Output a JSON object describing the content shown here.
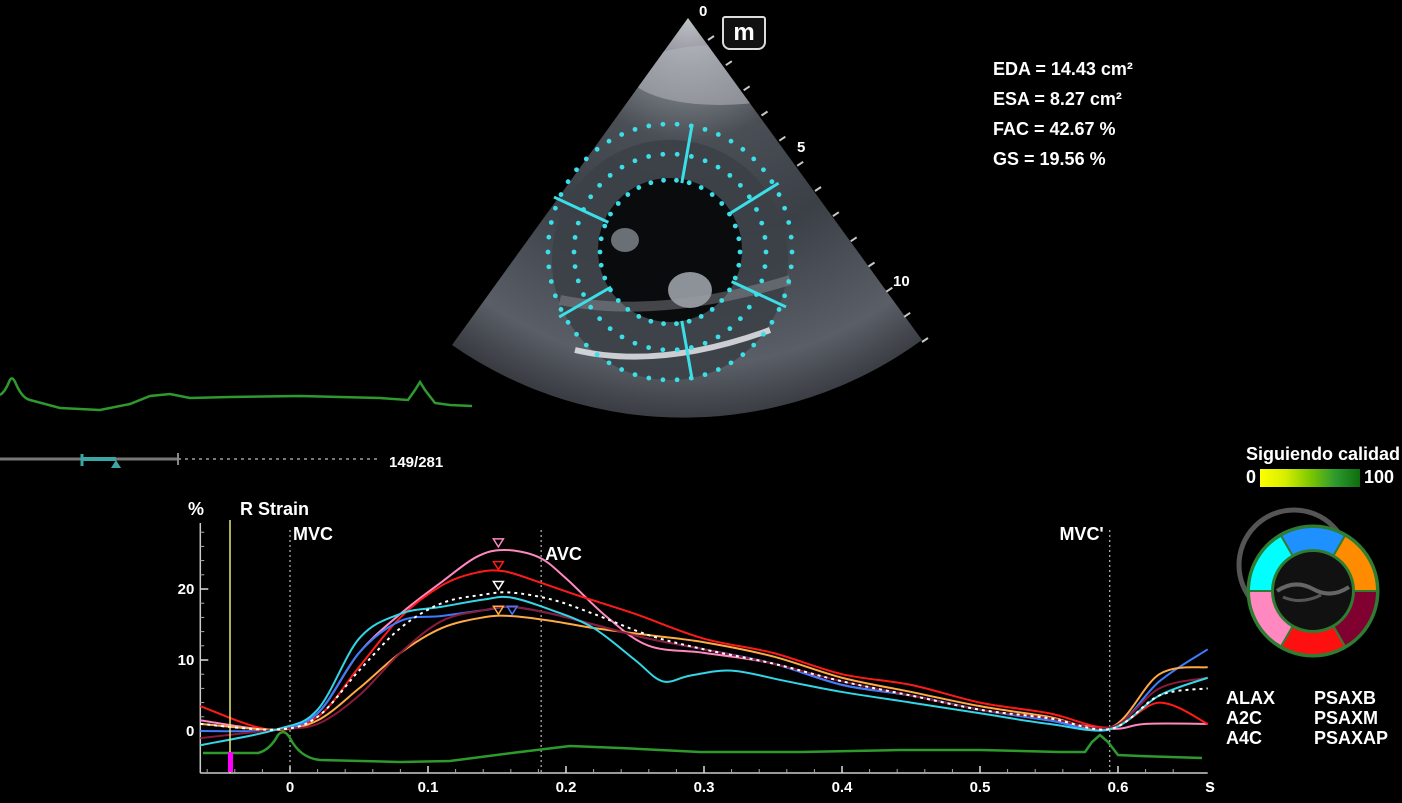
{
  "logo": {
    "letter": "m"
  },
  "depth_scale": {
    "labels": [
      "0",
      "5",
      "10"
    ]
  },
  "measurements": [
    {
      "label": "EDA",
      "value": "14.43 cm²"
    },
    {
      "label": "ESA",
      "value": "8.27 cm²"
    },
    {
      "label": "FAC",
      "value": "42.67 %"
    },
    {
      "label": "GS",
      "value": "19.56 %"
    }
  ],
  "frame_counter": "149/281",
  "quality": {
    "title": "Siguiendo calidad",
    "min_label": "0",
    "max_label": "100"
  },
  "colors": {
    "segment_cyan": "#00ffff",
    "segment_blue": "#1e90ff",
    "segment_orange": "#ff8c00",
    "segment_pink": "#ff88c0",
    "segment_red": "#ff1010",
    "segment_maroon": "#800030",
    "ecg_green": "#2e9a2e",
    "tracking_cyan": "#3adfe8"
  },
  "views": {
    "left": [
      "ALAX",
      "A2C",
      "A4C"
    ],
    "right": [
      "PSAXB",
      "PSAXM",
      "PSAXAP"
    ]
  },
  "chart_data": {
    "type": "line",
    "title": "R Strain",
    "ylabel": "%",
    "xlabel": "s",
    "xlim": [
      -0.065,
      0.665
    ],
    "ylim": [
      -3,
      30
    ],
    "x_ticks": [
      "0",
      "0.1",
      "0.2",
      "0.3",
      "0.4",
      "0.5",
      "0.6"
    ],
    "y_ticks": [
      "0",
      "10",
      "20"
    ],
    "markers": [
      {
        "label": "MVC",
        "x": 0.0
      },
      {
        "label": "AVC",
        "x": 0.182
      },
      {
        "label": "MVC'",
        "x": 0.594
      }
    ],
    "grid": false,
    "series": [
      {
        "color": "#ff88c0",
        "points": [
          [
            -0.065,
            1.5
          ],
          [
            -0.01,
            0.2
          ],
          [
            0.02,
            2.5
          ],
          [
            0.05,
            11
          ],
          [
            0.08,
            16.5
          ],
          [
            0.11,
            21
          ],
          [
            0.135,
            24.5
          ],
          [
            0.155,
            25.5
          ],
          [
            0.18,
            24.5
          ],
          [
            0.2,
            21.5
          ],
          [
            0.23,
            16
          ],
          [
            0.26,
            12
          ],
          [
            0.3,
            11
          ],
          [
            0.35,
            9.5
          ],
          [
            0.4,
            6.5
          ],
          [
            0.45,
            5
          ],
          [
            0.5,
            3
          ],
          [
            0.55,
            1.5
          ],
          [
            0.595,
            0.3
          ],
          [
            0.62,
            1
          ],
          [
            0.665,
            1
          ]
        ]
      },
      {
        "color": "#ff1a1a",
        "points": [
          [
            -0.065,
            3.5
          ],
          [
            -0.015,
            0.2
          ],
          [
            0.02,
            2
          ],
          [
            0.05,
            9
          ],
          [
            0.08,
            16
          ],
          [
            0.11,
            20.5
          ],
          [
            0.135,
            22.3
          ],
          [
            0.155,
            22.5
          ],
          [
            0.18,
            21
          ],
          [
            0.21,
            19
          ],
          [
            0.25,
            16.5
          ],
          [
            0.3,
            13
          ],
          [
            0.35,
            11
          ],
          [
            0.4,
            8
          ],
          [
            0.45,
            6.5
          ],
          [
            0.5,
            4
          ],
          [
            0.55,
            2.5
          ],
          [
            0.595,
            0.5
          ],
          [
            0.63,
            4
          ],
          [
            0.665,
            1
          ]
        ]
      },
      {
        "color": "#3c7cff",
        "points": [
          [
            -0.065,
            0
          ],
          [
            -0.01,
            0.2
          ],
          [
            0.02,
            2.5
          ],
          [
            0.05,
            11
          ],
          [
            0.08,
            15.5
          ],
          [
            0.11,
            16.2
          ],
          [
            0.14,
            17
          ],
          [
            0.16,
            17.5
          ],
          [
            0.19,
            16.5
          ],
          [
            0.22,
            15
          ],
          [
            0.26,
            13
          ],
          [
            0.3,
            11.5
          ],
          [
            0.35,
            9.5
          ],
          [
            0.4,
            6.5
          ],
          [
            0.45,
            5
          ],
          [
            0.5,
            3
          ],
          [
            0.55,
            1.5
          ],
          [
            0.595,
            0.3
          ],
          [
            0.63,
            7
          ],
          [
            0.665,
            11.5
          ]
        ]
      },
      {
        "color": "#ffaa44",
        "points": [
          [
            -0.065,
            1
          ],
          [
            -0.01,
            0.2
          ],
          [
            0.02,
            1.5
          ],
          [
            0.05,
            6
          ],
          [
            0.08,
            11
          ],
          [
            0.11,
            14.5
          ],
          [
            0.14,
            16
          ],
          [
            0.16,
            16.2
          ],
          [
            0.19,
            15.5
          ],
          [
            0.22,
            14.5
          ],
          [
            0.26,
            13.5
          ],
          [
            0.3,
            12.5
          ],
          [
            0.35,
            10.5
          ],
          [
            0.4,
            7.5
          ],
          [
            0.45,
            5.5
          ],
          [
            0.5,
            3.5
          ],
          [
            0.55,
            2
          ],
          [
            0.595,
            0.5
          ],
          [
            0.63,
            8
          ],
          [
            0.665,
            9
          ]
        ]
      },
      {
        "color": "#8b1a3a",
        "points": [
          [
            -0.065,
            -1
          ],
          [
            -0.01,
            0.2
          ],
          [
            0.02,
            1
          ],
          [
            0.05,
            5
          ],
          [
            0.08,
            11
          ],
          [
            0.11,
            15.5
          ],
          [
            0.14,
            17
          ],
          [
            0.16,
            17.5
          ],
          [
            0.19,
            16.5
          ],
          [
            0.22,
            15
          ],
          [
            0.26,
            13
          ],
          [
            0.3,
            11.5
          ],
          [
            0.35,
            9.5
          ],
          [
            0.4,
            7
          ],
          [
            0.45,
            5
          ],
          [
            0.5,
            3
          ],
          [
            0.55,
            1.8
          ],
          [
            0.595,
            0.5
          ],
          [
            0.63,
            6
          ],
          [
            0.665,
            7.5
          ]
        ]
      },
      {
        "color": "#33d6e6",
        "points": [
          [
            -0.065,
            -2
          ],
          [
            -0.01,
            0.2
          ],
          [
            0.02,
            3
          ],
          [
            0.05,
            13
          ],
          [
            0.08,
            16.5
          ],
          [
            0.11,
            17.5
          ],
          [
            0.14,
            18.5
          ],
          [
            0.16,
            18.8
          ],
          [
            0.19,
            17
          ],
          [
            0.22,
            14.5
          ],
          [
            0.25,
            10
          ],
          [
            0.27,
            7
          ],
          [
            0.29,
            7.8
          ],
          [
            0.32,
            8.5
          ],
          [
            0.36,
            7
          ],
          [
            0.4,
            5.5
          ],
          [
            0.45,
            4
          ],
          [
            0.5,
            2.5
          ],
          [
            0.55,
            1
          ],
          [
            0.595,
            0.3
          ],
          [
            0.63,
            5
          ],
          [
            0.665,
            7.5
          ]
        ]
      },
      {
        "color": "#ffffff",
        "points": [
          [
            -0.065,
            1
          ],
          [
            -0.01,
            0.2
          ],
          [
            0.02,
            2
          ],
          [
            0.05,
            8.5
          ],
          [
            0.08,
            14.5
          ],
          [
            0.11,
            18
          ],
          [
            0.14,
            19.2
          ],
          [
            0.16,
            19.5
          ],
          [
            0.19,
            18.5
          ],
          [
            0.22,
            16.5
          ],
          [
            0.26,
            13.5
          ],
          [
            0.3,
            11.5
          ],
          [
            0.35,
            9.5
          ],
          [
            0.4,
            7
          ],
          [
            0.45,
            5
          ],
          [
            0.5,
            3
          ],
          [
            0.55,
            1.8
          ],
          [
            0.595,
            0.3
          ],
          [
            0.63,
            5
          ],
          [
            0.665,
            6
          ]
        ]
      }
    ],
    "peaks": [
      {
        "x": 0.151,
        "y": 26.5,
        "color": "#ff88c0"
      },
      {
        "x": 0.151,
        "y": 23.3,
        "color": "#ff1a1a"
      },
      {
        "x": 0.151,
        "y": 20.5,
        "color": "#ffffff"
      },
      {
        "x": 0.151,
        "y": 17,
        "color": "#ffaa44"
      },
      {
        "x": 0.161,
        "y": 17,
        "color": "#3c7cff"
      }
    ]
  }
}
